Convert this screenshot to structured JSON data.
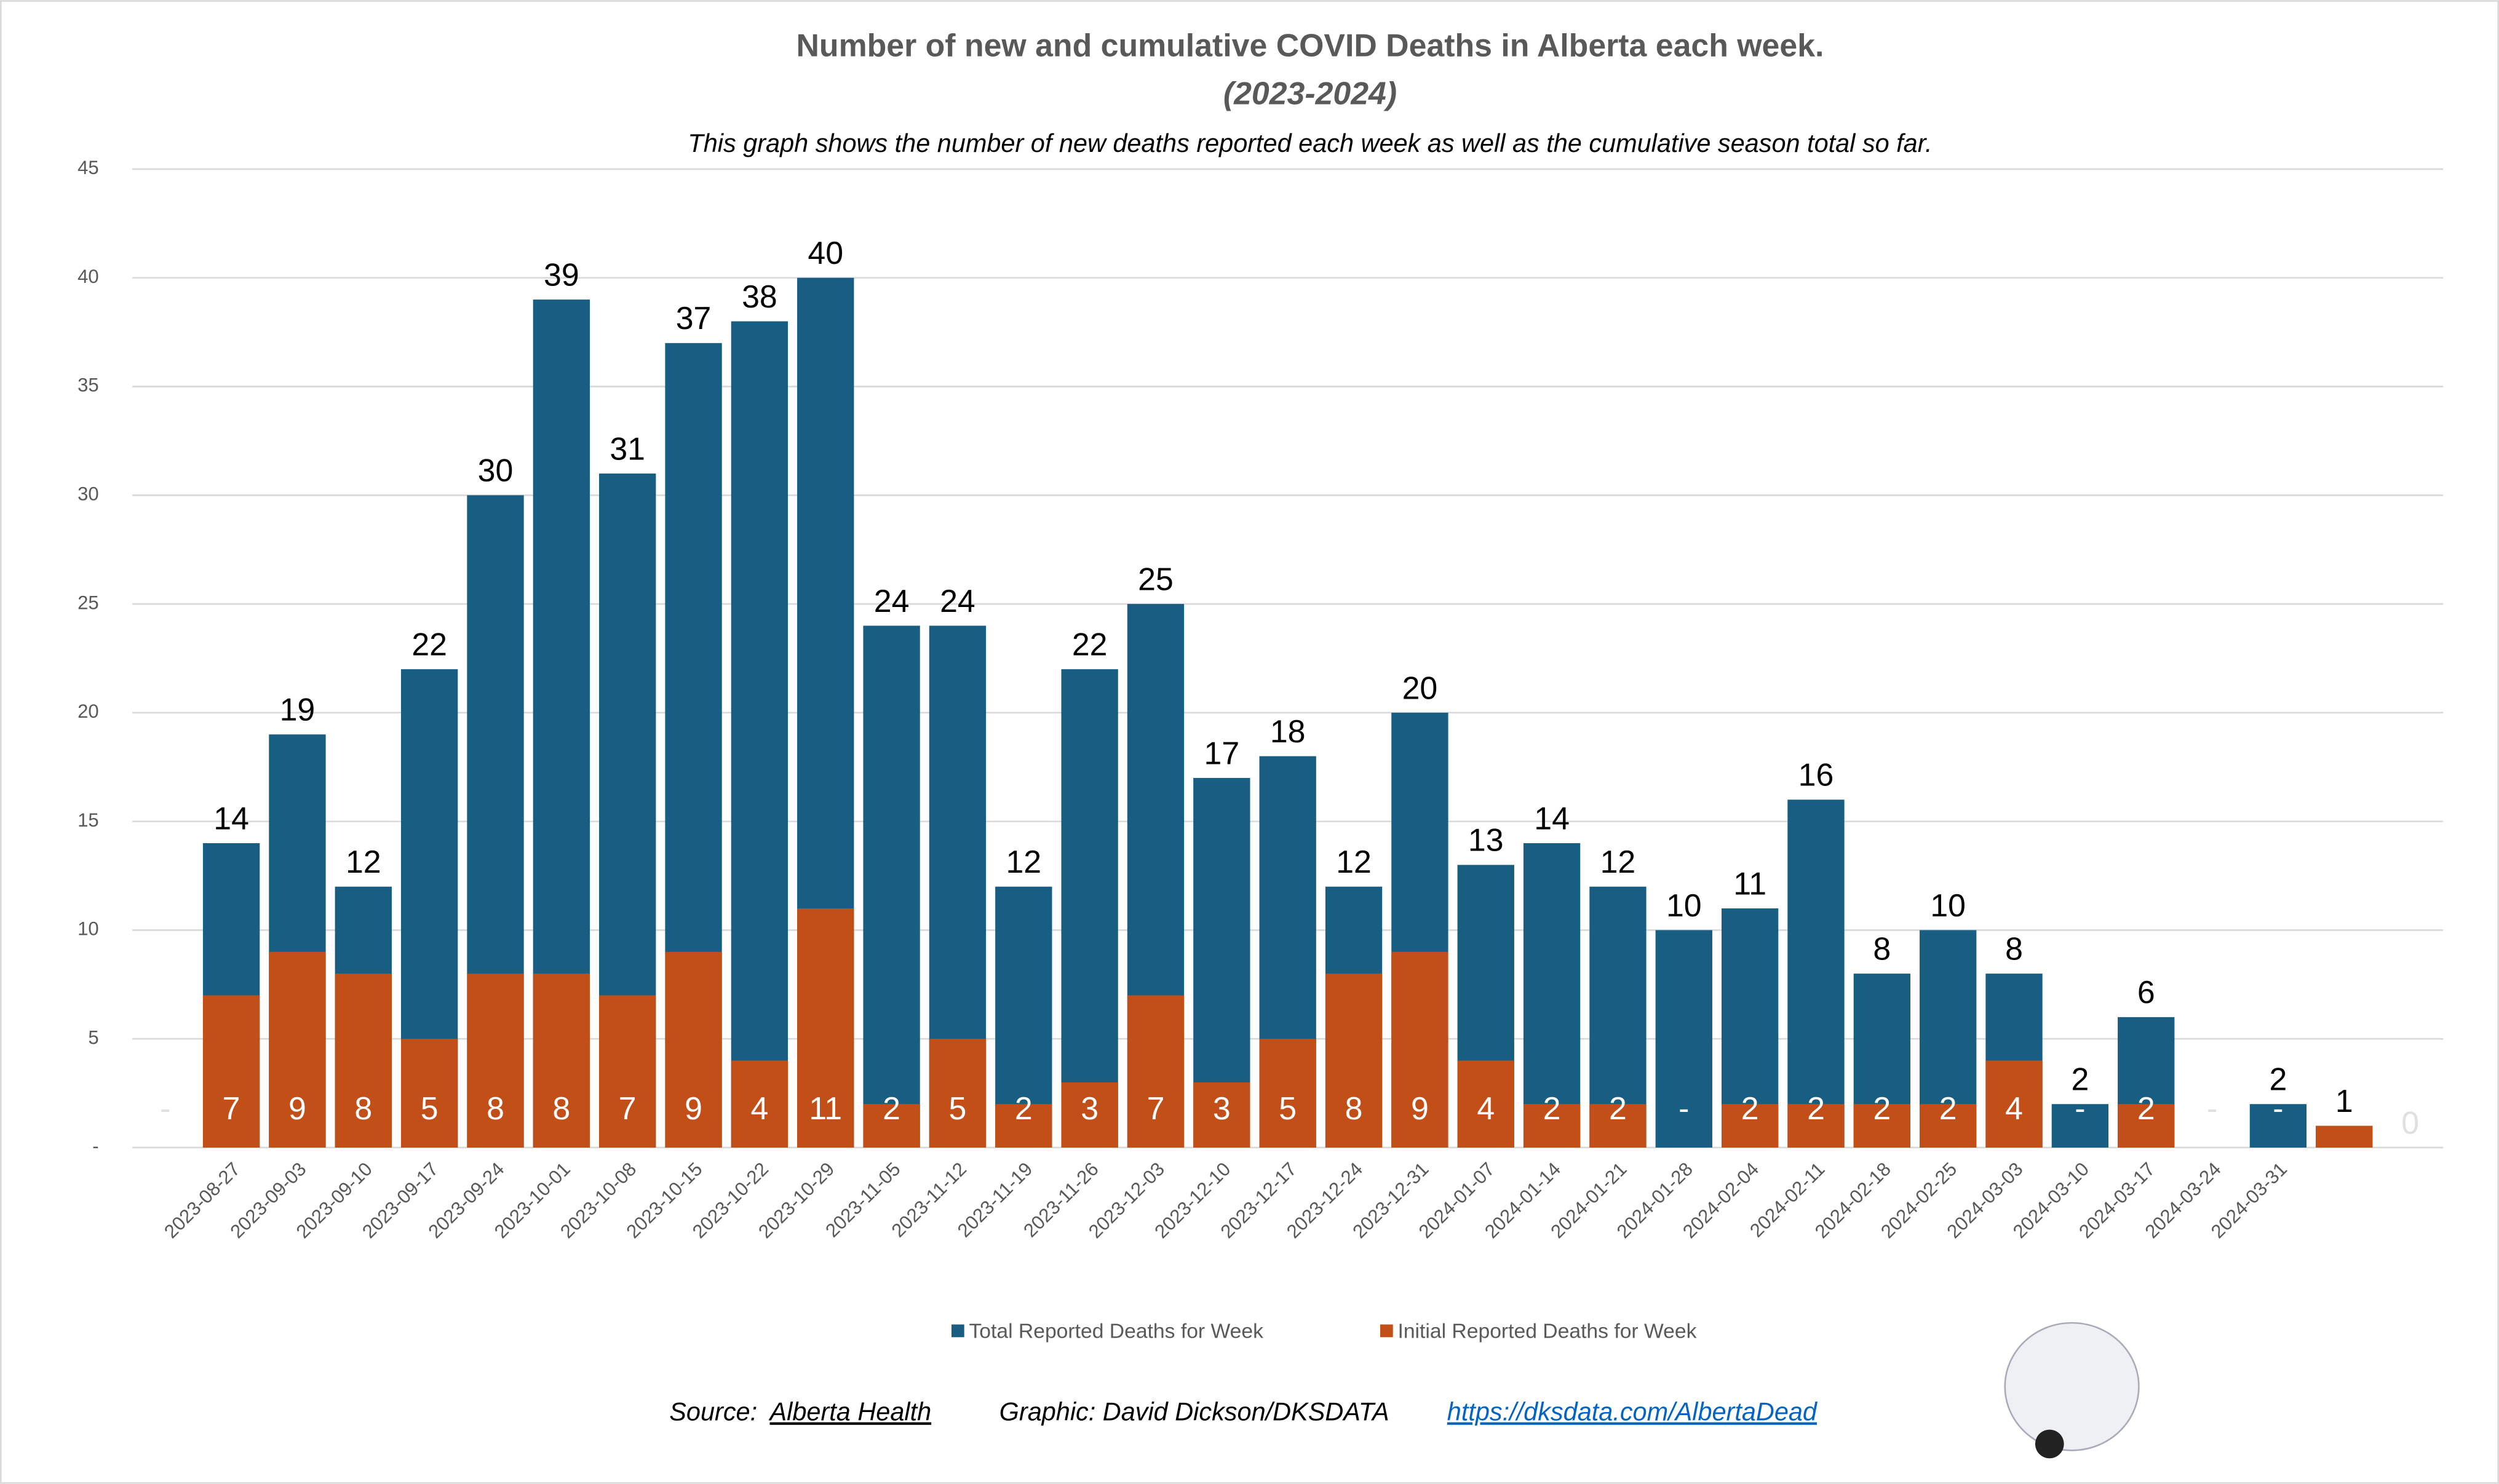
{
  "chart_data": {
    "type": "bar",
    "title": "Number of new and cumulative COVID Deaths in Alberta each week.",
    "subtitle": "(2023-2024)",
    "caption": "This graph shows the number of new deaths reported each week as well as the cumulative season total so far.",
    "categories": [
      null,
      "2023-08-27",
      "2023-09-03",
      "2023-09-10",
      "2023-09-17",
      "2023-09-24",
      "2023-10-01",
      "2023-10-08",
      "2023-10-15",
      "2023-10-22",
      "2023-10-29",
      "2023-11-05",
      "2023-11-12",
      "2023-11-19",
      "2023-11-26",
      "2023-12-03",
      "2023-12-10",
      "2023-12-17",
      "2023-12-24",
      "2023-12-31",
      "2024-01-07",
      "2024-01-14",
      "2024-01-21",
      "2024-01-28",
      "2024-02-04",
      "2024-02-11",
      "2024-02-18",
      "2024-02-25",
      "2024-03-03",
      "2024-03-10",
      "2024-03-17",
      "2024-03-24",
      "2024-03-31",
      null,
      null
    ],
    "series": [
      {
        "name": "Total Reported Deaths for Week",
        "color": "#175e82",
        "values": [
          null,
          14,
          19,
          12,
          22,
          30,
          39,
          31,
          37,
          38,
          40,
          24,
          24,
          12,
          22,
          25,
          17,
          18,
          12,
          20,
          13,
          14,
          12,
          10,
          11,
          16,
          8,
          10,
          8,
          2,
          6,
          null,
          2,
          1,
          0
        ]
      },
      {
        "name": "Initial Reported Deaths for Week",
        "color": "#c24f17",
        "values": [
          0,
          7,
          9,
          8,
          5,
          8,
          8,
          7,
          9,
          4,
          11,
          2,
          5,
          2,
          3,
          7,
          3,
          5,
          8,
          9,
          4,
          2,
          2,
          0,
          2,
          2,
          2,
          2,
          4,
          0,
          2,
          0,
          0,
          1,
          null
        ],
        "value_labels": [
          "-",
          "7",
          "9",
          "8",
          "5",
          "8",
          "8",
          "7",
          "9",
          "4",
          "11",
          "2",
          "5",
          "2",
          "3",
          "7",
          "3",
          "5",
          "8",
          "9",
          "4",
          "2",
          "2",
          "-",
          "2",
          "2",
          "2",
          "2",
          "4",
          "-",
          "2",
          "-",
          "-",
          null,
          null
        ]
      }
    ],
    "ylim": [
      0,
      45
    ],
    "yticks": [
      {
        "value": 0,
        "label": "-"
      },
      5,
      10,
      15,
      20,
      25,
      30,
      35,
      40,
      45
    ],
    "grid": true,
    "legend": "bottom",
    "source_label": "Source:",
    "source": "Alberta Health",
    "credit": "Graphic: David Dickson/DKSDATA",
    "url": "https://dksdata.com/AlbertaDead"
  }
}
